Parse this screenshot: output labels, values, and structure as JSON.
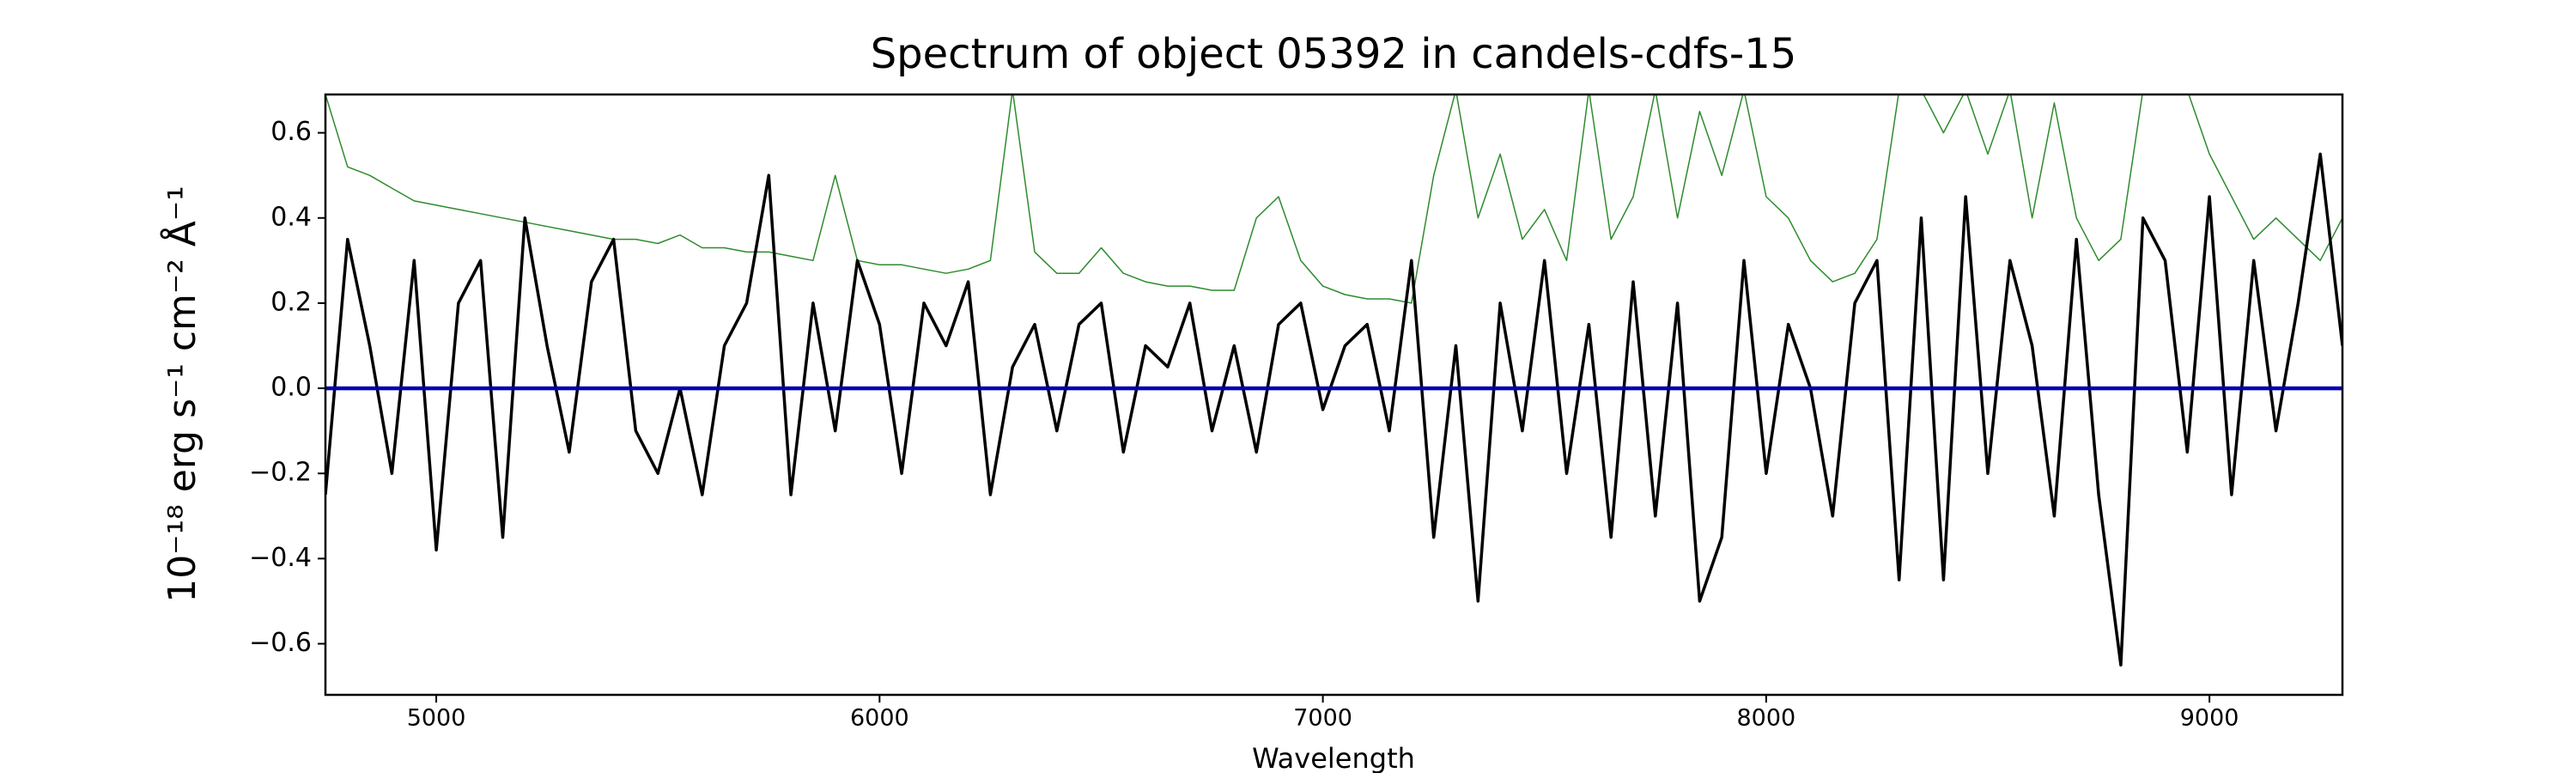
{
  "chart_data": {
    "type": "line",
    "title": "Spectrum of object 05392 in candels-cdfs-15",
    "xlabel": "Wavelength",
    "ylabel": "10⁻¹⁸ erg s⁻¹ cm⁻² Å⁻¹",
    "x": [
      4750,
      4800,
      4850,
      4900,
      4950,
      5000,
      5050,
      5100,
      5150,
      5200,
      5250,
      5300,
      5350,
      5400,
      5450,
      5500,
      5550,
      5600,
      5650,
      5700,
      5750,
      5800,
      5850,
      5900,
      5950,
      6000,
      6050,
      6100,
      6150,
      6200,
      6250,
      6300,
      6350,
      6400,
      6450,
      6500,
      6550,
      6600,
      6650,
      6700,
      6750,
      6800,
      6850,
      6900,
      6950,
      7000,
      7050,
      7100,
      7150,
      7200,
      7250,
      7300,
      7350,
      7400,
      7450,
      7500,
      7550,
      7600,
      7650,
      7700,
      7750,
      7800,
      7850,
      7900,
      7950,
      8000,
      8050,
      8100,
      8150,
      8200,
      8250,
      8300,
      8350,
      8400,
      8450,
      8500,
      8550,
      8600,
      8650,
      8700,
      8750,
      8800,
      8850,
      8900,
      8950,
      9000,
      9050,
      9100,
      9150,
      9200,
      9250,
      9300
    ],
    "series": [
      {
        "color": "#2e8b2e",
        "width": 1.5,
        "values": [
          0.69,
          0.52,
          0.5,
          0.47,
          0.44,
          0.43,
          0.42,
          0.41,
          0.4,
          0.39,
          0.38,
          0.37,
          0.36,
          0.35,
          0.35,
          0.34,
          0.36,
          0.33,
          0.33,
          0.32,
          0.32,
          0.31,
          0.3,
          0.5,
          0.3,
          0.29,
          0.29,
          0.28,
          0.27,
          0.28,
          0.3,
          0.7,
          0.32,
          0.27,
          0.27,
          0.33,
          0.27,
          0.25,
          0.24,
          0.24,
          0.23,
          0.23,
          0.4,
          0.45,
          0.3,
          0.24,
          0.22,
          0.21,
          0.21,
          0.2,
          0.5,
          0.7,
          0.4,
          0.55,
          0.35,
          0.42,
          0.3,
          0.7,
          0.35,
          0.45,
          0.7,
          0.4,
          0.65,
          0.5,
          0.7,
          0.45,
          0.4,
          0.3,
          0.25,
          0.27,
          0.35,
          0.7,
          0.7,
          0.6,
          0.7,
          0.55,
          0.7,
          0.4,
          0.67,
          0.4,
          0.3,
          0.35,
          0.7,
          0.7,
          0.7,
          0.55,
          0.45,
          0.35,
          0.4,
          0.35,
          0.3,
          0.4
        ]
      },
      {
        "color": "#000000",
        "width": 3.5,
        "values": [
          -0.25,
          0.35,
          0.1,
          -0.2,
          0.3,
          -0.38,
          0.2,
          0.3,
          -0.35,
          0.4,
          0.1,
          -0.15,
          0.25,
          0.35,
          -0.1,
          -0.2,
          0.0,
          -0.25,
          0.1,
          0.2,
          0.5,
          -0.25,
          0.2,
          -0.1,
          0.3,
          0.15,
          -0.2,
          0.2,
          0.1,
          0.25,
          -0.25,
          0.05,
          0.15,
          -0.1,
          0.15,
          0.2,
          -0.15,
          0.1,
          0.05,
          0.2,
          -0.1,
          0.1,
          -0.15,
          0.15,
          0.2,
          -0.05,
          0.1,
          0.15,
          -0.1,
          0.3,
          -0.35,
          0.1,
          -0.5,
          0.2,
          -0.1,
          0.3,
          -0.2,
          0.15,
          -0.35,
          0.25,
          -0.3,
          0.2,
          -0.5,
          -0.35,
          0.3,
          -0.2,
          0.15,
          0.0,
          -0.3,
          0.2,
          0.3,
          -0.45,
          0.4,
          -0.45,
          0.45,
          -0.2,
          0.3,
          0.1,
          -0.3,
          0.35,
          -0.25,
          -0.65,
          0.4,
          0.3,
          -0.15,
          0.45,
          -0.25,
          0.3,
          -0.1,
          0.2,
          0.55,
          0.1
        ]
      },
      {
        "color": "#0000b4",
        "width": 4.5,
        "values": [
          0,
          0,
          0,
          0,
          0,
          0,
          0,
          0,
          0,
          0,
          0,
          0,
          0,
          0,
          0,
          0,
          0,
          0,
          0,
          0,
          0,
          0,
          0,
          0,
          0,
          0,
          0,
          0,
          0,
          0,
          0,
          0,
          0,
          0,
          0,
          0,
          0,
          0,
          0,
          0,
          0,
          0,
          0,
          0,
          0,
          0,
          0,
          0,
          0,
          0,
          0,
          0,
          0,
          0,
          0,
          0,
          0,
          0,
          0,
          0,
          0,
          0,
          0,
          0,
          0,
          0,
          0,
          0,
          0,
          0,
          0,
          0,
          0,
          0,
          0,
          0,
          0,
          0,
          0,
          0,
          0,
          0,
          0,
          0,
          0,
          0,
          0,
          0,
          0,
          0,
          0,
          0
        ]
      }
    ],
    "xlim": [
      4750,
      9300
    ],
    "ylim": [
      -0.72,
      0.69
    ],
    "xticks": [
      5000,
      6000,
      7000,
      8000,
      9000
    ],
    "yticks": [
      {
        "value": -0.6,
        "label": "−0.6"
      },
      {
        "value": -0.4,
        "label": "−0.4"
      },
      {
        "value": -0.2,
        "label": "−0.2"
      },
      {
        "value": 0,
        "label": "0.0"
      },
      0.2,
      0.4,
      0.6
    ]
  }
}
